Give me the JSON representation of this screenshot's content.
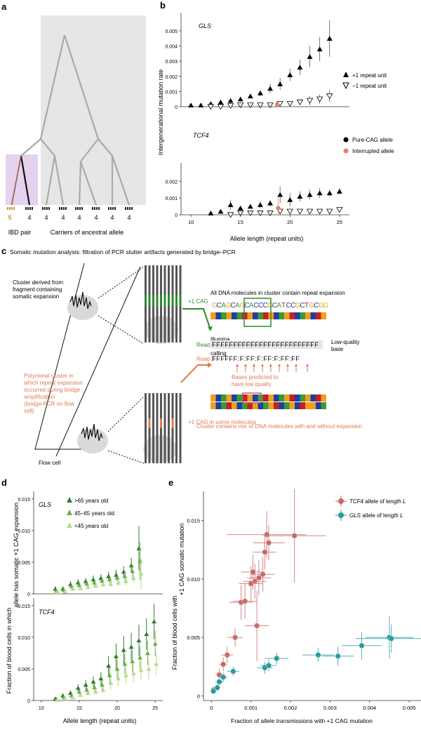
{
  "panel_labels": {
    "a": "a",
    "b": "b",
    "c": "c",
    "d": "d",
    "e": "e"
  },
  "panel_a": {
    "ibd_caption": "IBD pair",
    "carriers_caption": "Carriers of ancestral allele",
    "leaf_labels": [
      "5",
      "4",
      "4",
      "4",
      "4",
      "4",
      "4",
      "4"
    ],
    "colors": {
      "shade": "#e6e6e6",
      "ibd_shade": "#e4d2ee",
      "tree": "#aaaaaa",
      "ibd_branch": "#111111",
      "ibd_branch_alt": "#e8844e",
      "highlight": "#c9a227"
    }
  },
  "panel_b": {
    "ylabel": "Intergenerational mutation rate",
    "xlabel": "Allele length (repeat units)",
    "legend": {
      "plus_one": "+1 repeat unit",
      "minus_one": "−1 repeat unit",
      "pure": "Pure-CAG allele",
      "interrupted": "Interrupted allele"
    },
    "interrupted_color": "#e8806a"
  },
  "panel_c": {
    "title": "Somatic mutation analysis: filtration of PCR stutter artifacts generated by bridge–PCR",
    "cluster_label": "Cluster derived from fragment containing somatic expansion",
    "plus_cag": "+1 CAG",
    "polyclonal_label": "Polyclonal cluster in which repeat expansion occurred during bridge amplification (bridge-PCR on flow cell)",
    "plus_cag_some": "+1 CAG in some molecules",
    "flow_cell": "Flow cell",
    "illumina": "Illumina base calling",
    "all_dna": "All DNA molecules in cluster contain repeat expansion",
    "sequence": "GCAGCAGCACCCGCATCCGCTGCGG",
    "read1_label": "Read 1",
    "read1": "FFFFFFFFFFFFFFFFFFFFFFFFF",
    "read2_label": "Read 2",
    "read2": "FFFFFF:F:FF:F:FF:F:FF:FF",
    "low_quality": "Low-quality base",
    "bases_predicted": "Bases predicted to have low quality",
    "cluster_mix": "Cluster contains mix of DNA molecules with and without expansion",
    "colors": {
      "green": "#2e8b2e",
      "orange": "#e07a50",
      "gray": "#d9d9d9",
      "A": "#3a9a3a",
      "C": "#1f3f9e",
      "G": "#f0a020",
      "T": "#c82020",
      "box": "#2e8b2e",
      "box2": "#c25a7a"
    }
  },
  "panel_d": {
    "ylabel": "Fraction of blood cells in which allele has somatic +1 CAG expansion",
    "xlabel": "Allele length (repeat units)",
    "legend": [
      {
        "name": ">65 years old",
        "color": "#2f7d2f"
      },
      {
        "name": "45–65 years old",
        "color": "#6bb04a"
      },
      {
        "name": "<45 years old",
        "color": "#b5dc8a"
      }
    ]
  },
  "panel_e": {
    "ylabel": "Fraction of blood cells with +1 CAG somatic mutation",
    "xlabel": "Fraction of allele transmissions with +1 CAG mutation",
    "legend": [
      {
        "gene": "TCF4",
        "rest": " allele of length ",
        "L": "L",
        "color": "#c86a6a"
      },
      {
        "gene": "GLS",
        "rest": " allele of length ",
        "L": "L",
        "color": "#2a9aa0"
      }
    ]
  },
  "chart_data": [
    {
      "type": "scatter",
      "panel": "b-top",
      "gene_label": "GLS",
      "xlabel": "Allele length (repeat units)",
      "ylabel": "Intergenerational mutation rate",
      "xlim": [
        9,
        26
      ],
      "ylim": [
        0,
        0.0062
      ],
      "xticks": [
        10,
        15,
        20,
        25
      ],
      "yticks": [
        0,
        0.001,
        0.002,
        0.003,
        0.004,
        0.005
      ],
      "ytick_labels": [
        "0",
        "0.001",
        "0.002",
        "0.003",
        "0.004",
        "0.005"
      ],
      "series": [
        {
          "name": "+1 repeat unit",
          "marker": "triangle-up",
          "x": [
            10,
            11,
            12,
            13,
            14,
            15,
            16,
            17,
            18,
            19,
            20,
            21,
            22,
            23,
            24
          ],
          "values": [
            0.0001,
            0.0001,
            0.0002,
            0.0003,
            0.0004,
            0.0005,
            0.0007,
            0.0009,
            0.0012,
            0.0015,
            0.0021,
            0.0026,
            0.0033,
            0.0038,
            0.0045
          ],
          "err": [
            5e-05,
            5e-05,
            5e-05,
            8e-05,
            0.0001,
            0.0001,
            0.00015,
            0.0002,
            0.0003,
            0.0004,
            0.0004,
            0.0005,
            0.0007,
            0.0008,
            0.0012
          ]
        },
        {
          "name": "−1 repeat unit",
          "marker": "triangle-down",
          "x": [
            12,
            13,
            14,
            15,
            16,
            17,
            18,
            19,
            20,
            21,
            22,
            23,
            24
          ],
          "values": [
            0,
            0,
            5e-05,
            0.0001,
            0.0001,
            0.0001,
            0.0001,
            0.0002,
            0.0002,
            0.0003,
            0.0004,
            0.0005,
            0.0007
          ],
          "err": [
            3e-05,
            3e-05,
            3e-05,
            5e-05,
            5e-05,
            5e-05,
            5e-05,
            0.0001,
            0.0001,
            0.0002,
            0.0003,
            0.0003,
            0.0004
          ]
        },
        {
          "name": "Interrupted allele",
          "marker": "circle",
          "x": [
            18.7
          ],
          "values": [
            0.00015
          ],
          "err": [
            0.0002
          ]
        }
      ]
    },
    {
      "type": "scatter",
      "panel": "b-bottom",
      "gene_label": "TCF4",
      "xlim": [
        9,
        26
      ],
      "ylim": [
        0,
        0.0031
      ],
      "xticks": [
        10,
        15,
        20,
        25
      ],
      "yticks": [
        0,
        0.001,
        0.002
      ],
      "ytick_labels": [
        "0",
        "0.001",
        "0.002"
      ],
      "series": [
        {
          "name": "+1 repeat unit",
          "marker": "triangle-up",
          "x": [
            12,
            13,
            14,
            15,
            16,
            17,
            18,
            19,
            20,
            21,
            22,
            23,
            24,
            25
          ],
          "values": [
            0.0001,
            0.0002,
            0.0006,
            0.0004,
            0.0005,
            0.0006,
            0.0007,
            0.0012,
            0.0009,
            0.0011,
            0.0012,
            0.0013,
            0.0013,
            0.0014
          ],
          "err": [
            5e-05,
            8e-05,
            0.0003,
            0.0001,
            0.0001,
            0.0002,
            0.0002,
            0.0005,
            0.0004,
            0.0003,
            0.0003,
            0.0003,
            0.0002,
            0.0002
          ]
        },
        {
          "name": "−1 repeat unit",
          "marker": "triangle-down",
          "x": [
            14,
            15,
            16,
            17,
            18,
            19,
            20,
            21,
            22,
            23,
            24,
            25
          ],
          "values": [
            0,
            0.0001,
            0.0001,
            0.0001,
            0.0001,
            0.0002,
            0.0002,
            0.0002,
            0.0002,
            0.0002,
            0.0002,
            0.0003
          ],
          "err": [
            3e-05,
            5e-05,
            5e-05,
            5e-05,
            5e-05,
            0.0001,
            0.0001,
            0.0001,
            0.0001,
            0.0001,
            0.0001,
            0.0001
          ]
        },
        {
          "name": "Interrupted allele",
          "marker": "circle",
          "x": [
            18.8
          ],
          "values": [
            0.0004
          ],
          "err": [
            0.0006
          ]
        }
      ]
    },
    {
      "type": "scatter",
      "panel": "d-top",
      "gene_label": "GLS",
      "xlim": [
        9,
        26
      ],
      "ylim": [
        0,
        0.0162
      ],
      "xticks": [
        10,
        15,
        20,
        25
      ],
      "yticks": [
        0,
        0.005,
        0.01,
        0.015
      ],
      "ytick_labels": [
        "0",
        "0.005",
        "0.010",
        "0.015"
      ],
      "series": [
        {
          "name": ">65 years old",
          "x": [
            12,
            13,
            14,
            15,
            16,
            17,
            18,
            19,
            20,
            21,
            22,
            23
          ],
          "values": [
            0.0008,
            0.0008,
            0.0015,
            0.0018,
            0.002,
            0.0023,
            0.0025,
            0.0028,
            0.003,
            0.0035,
            0.0045,
            0.0072
          ],
          "err": [
            0.0004,
            0.0004,
            0.0005,
            0.0005,
            0.0005,
            0.0006,
            0.0006,
            0.0007,
            0.0008,
            0.0009,
            0.0012,
            0.0035
          ]
        },
        {
          "name": "45–65 years old",
          "x": [
            12,
            13,
            14,
            15,
            16,
            17,
            18,
            19,
            20,
            21,
            22,
            23
          ],
          "values": [
            0.0005,
            0.0006,
            0.0012,
            0.0014,
            0.0016,
            0.0018,
            0.0021,
            0.0023,
            0.0026,
            0.0028,
            0.0036,
            0.0052
          ],
          "err": [
            0.0003,
            0.0003,
            0.0004,
            0.0004,
            0.0004,
            0.0005,
            0.0005,
            0.0006,
            0.0006,
            0.0007,
            0.001,
            0.003
          ]
        },
        {
          "name": "<45 years old",
          "x": [
            12,
            13,
            14,
            15,
            16,
            17,
            18,
            19,
            20,
            21,
            22,
            23
          ],
          "values": [
            0.0003,
            0.0004,
            0.0008,
            0.0009,
            0.0011,
            0.0013,
            0.0015,
            0.0016,
            0.0018,
            0.002,
            0.0025,
            0.0032
          ],
          "err": [
            0.0002,
            0.0002,
            0.0003,
            0.0003,
            0.0003,
            0.0004,
            0.0004,
            0.0005,
            0.0005,
            0.0006,
            0.0008,
            0.0025
          ]
        }
      ]
    },
    {
      "type": "scatter",
      "panel": "d-bottom",
      "gene_label": "TCF4",
      "xlabel": "Allele length (repeat units)",
      "xlim": [
        9,
        26
      ],
      "ylim": [
        0,
        0.0162
      ],
      "xticks": [
        10,
        15,
        20,
        25
      ],
      "yticks": [
        0,
        0.005,
        0.01,
        0.015
      ],
      "ytick_labels": [
        "0",
        "0.005",
        "0.010",
        "0.015"
      ],
      "series": [
        {
          "name": ">65 years old",
          "x": [
            12,
            13,
            14,
            15,
            16,
            17,
            18,
            19,
            20,
            21,
            22,
            23,
            24,
            25
          ],
          "values": [
            0.0003,
            0.0008,
            0.0012,
            0.002,
            0.0025,
            0.003,
            0.0035,
            0.0055,
            0.007,
            0.008,
            0.0085,
            0.0095,
            0.0105,
            0.0125
          ],
          "err": [
            0.0002,
            0.0003,
            0.0004,
            0.0006,
            0.0007,
            0.0008,
            0.001,
            0.0015,
            0.002,
            0.0022,
            0.0022,
            0.0025,
            0.0025,
            0.0028
          ]
        },
        {
          "name": "45–65 years old",
          "x": [
            12,
            13,
            14,
            15,
            16,
            17,
            18,
            19,
            20,
            21,
            22,
            23,
            24,
            25
          ],
          "values": [
            0.0002,
            0.0005,
            0.0008,
            0.0014,
            0.0017,
            0.0021,
            0.0025,
            0.004,
            0.005,
            0.0058,
            0.0062,
            0.0068,
            0.0075,
            0.009
          ],
          "err": [
            0.0001,
            0.0002,
            0.0003,
            0.0004,
            0.0005,
            0.0006,
            0.0007,
            0.0012,
            0.0015,
            0.0016,
            0.0017,
            0.0018,
            0.0019,
            0.002
          ]
        },
        {
          "name": "<45 years old",
          "x": [
            12,
            13,
            14,
            15,
            16,
            17,
            18,
            19,
            20,
            21,
            22,
            23,
            24,
            25
          ],
          "values": [
            0.0001,
            0.0003,
            0.0005,
            0.0009,
            0.0012,
            0.0014,
            0.0017,
            0.0028,
            0.0035,
            0.004,
            0.0043,
            0.0048,
            0.005,
            0.0058
          ],
          "err": [
            0.0001,
            0.0001,
            0.0002,
            0.0003,
            0.0004,
            0.0004,
            0.0005,
            0.001,
            0.0012,
            0.0013,
            0.0014,
            0.0015,
            0.0016,
            0.0018
          ]
        }
      ]
    },
    {
      "type": "scatter",
      "panel": "e",
      "xlabel": "Fraction of allele transmissions with +1 CAG mutation",
      "ylabel": "Fraction of blood cells with +1 CAG somatic mutation",
      "xlim": [
        -0.0002,
        0.0053
      ],
      "ylim": [
        -0.0004,
        0.0175
      ],
      "xticks": [
        0,
        0.001,
        0.002,
        0.003,
        0.004,
        0.005
      ],
      "xtick_labels": [
        "0",
        "0.001",
        "0.002",
        "0.003",
        "0.004",
        "0.005"
      ],
      "yticks": [
        0,
        0.005,
        0.01,
        0.015
      ],
      "ytick_labels": [
        "0",
        "0.005",
        "0.010",
        "0.015"
      ],
      "series": [
        {
          "name": "TCF4 allele of length L",
          "x": [
            5e-05,
            0.0002,
            0.0003,
            0.0004,
            0.0006,
            0.00075,
            0.00085,
            0.001,
            0.00105,
            0.0011,
            0.00115,
            0.0012,
            0.0013,
            0.00135,
            0.0014,
            0.00145,
            0.0021
          ],
          "values": [
            0.0005,
            0.0018,
            0.0027,
            0.0035,
            0.005,
            0.008,
            0.0081,
            0.0096,
            0.0106,
            0.0098,
            0.006,
            0.0101,
            0.0104,
            0.0123,
            0.0138,
            0.0131,
            0.0137
          ],
          "xerr": [
            5e-05,
            0.0001,
            0.0001,
            0.00015,
            0.0002,
            0.0003,
            0.0003,
            0.0003,
            0.0003,
            0.0003,
            0.0003,
            0.0003,
            0.0003,
            0.0003,
            0.001,
            0.0004,
            0.0008
          ],
          "yerr": [
            0.0003,
            0.0005,
            0.0006,
            0.0007,
            0.0008,
            0.0015,
            0.0015,
            0.0015,
            0.0015,
            0.0015,
            0.003,
            0.0015,
            0.0015,
            0.0015,
            0.002,
            0.0015,
            0.004
          ]
        },
        {
          "name": "GLS allele of length L",
          "x": [
            5e-05,
            0.00015,
            0.0002,
            0.0003,
            0.00055,
            0.00135,
            0.00145,
            0.00165,
            0.0027,
            0.0032,
            0.0038,
            0.0045,
            0.00455
          ],
          "values": [
            0.0004,
            0.0007,
            0.0012,
            0.0016,
            0.0021,
            0.0024,
            0.0026,
            0.0032,
            0.0035,
            0.0034,
            0.0043,
            0.005,
            0.0049
          ],
          "xerr": [
            5e-05,
            8e-05,
            0.0001,
            0.0001,
            0.00015,
            0.0002,
            0.0002,
            0.0003,
            0.0004,
            0.0004,
            0.0005,
            0.0006,
            0.0009
          ],
          "yerr": [
            0.0002,
            0.0003,
            0.0003,
            0.0004,
            0.0004,
            0.0005,
            0.0005,
            0.0005,
            0.0006,
            0.0008,
            0.0012,
            0.0018,
            0.0012
          ]
        }
      ]
    }
  ]
}
